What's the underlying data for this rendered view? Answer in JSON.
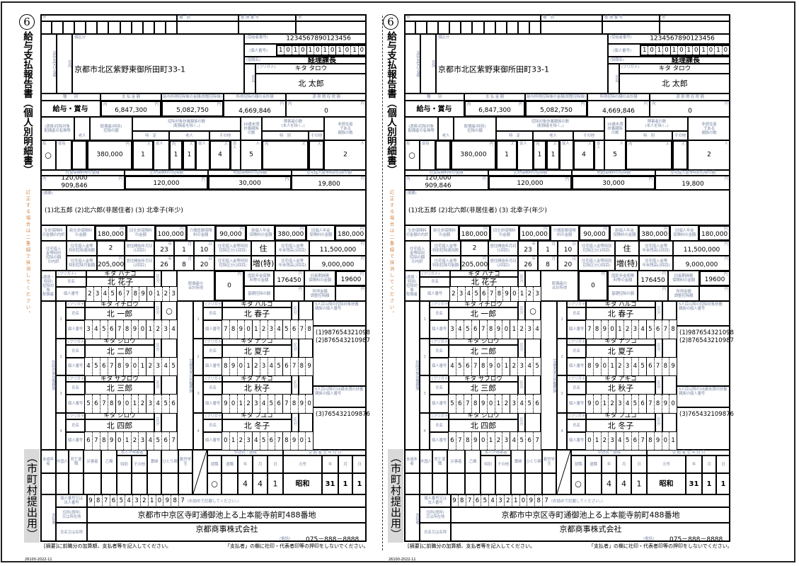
{
  "form": {
    "number": "6",
    "title": "給与支払報告書（個人別明細書）",
    "side_title": "（市町村提出用）",
    "side_note": "訂正する場合は二重線で抹消してください。",
    "recipient": {
      "address": "京都市北区紫野東御所田町33-1",
      "recipient_number": "1234567890123456",
      "my_number": "101010101010",
      "position": "経理課長",
      "furigana": "キタ タロウ",
      "name": "北 太郎"
    },
    "payment": {
      "type": "給与・賞与",
      "amount": "6,847,300",
      "after_deduction": "5,082,750",
      "total_deductions": "4,669,846",
      "withholding_tax": "0"
    },
    "counts": {
      "spouse_yes": "○",
      "spouse_deduction": "380,000",
      "specific": "1",
      "elderly_cohabiting": "1",
      "elderly": "1",
      "other": "4",
      "under16": "5",
      "nonresident": "2"
    },
    "deductions": {
      "social_insurance_inner": "120,000",
      "social_insurance": "909,846",
      "life_insurance": "120,000",
      "earthquake_insurance": "30,000",
      "housing_loan": "19,800"
    },
    "remarks": "(1)北五郎 (2)北六郎(非居住者) (3) 北幸子(年少)",
    "insurance": {
      "new_life": "180,000",
      "old_life": "100,000",
      "care_medical": "90,000",
      "new_pension": "380,000",
      "old_pension": "180,000"
    },
    "housing": {
      "count": "2",
      "start1": {
        "year": "23",
        "month": "1",
        "day": "10"
      },
      "category1": "住",
      "balance1": "11,500,000",
      "possible_amount": "205,000",
      "start2": {
        "year": "26",
        "month": "8",
        "day": "20"
      },
      "category2": "増(特)",
      "balance2": "9,000,000"
    },
    "spouse": {
      "furigana": "キタ ハナコ",
      "name": "北 花子",
      "my_number": "234567890123",
      "total_income": "0",
      "national_pension": "176450",
      "old_long_term": "19600"
    },
    "dependents": [
      {
        "furigana": "キタ イチロウ",
        "name": "北 一郎",
        "my_number": "345678901234",
        "kubun": "○"
      },
      {
        "furigana": "キタ ジロウ",
        "name": "北 二郎",
        "my_number": "456789012345",
        "kubun": ""
      },
      {
        "furigana": "キタ サブロウ",
        "name": "北 三郎",
        "my_number": "567890123456",
        "kubun": ""
      },
      {
        "furigana": "キタ シロウ",
        "name": "北 四郎",
        "my_number": "678901234567",
        "kubun": ""
      }
    ],
    "under16": [
      {
        "furigana": "キタ ハルコ",
        "name": "北 春子",
        "my_number": "789012345678"
      },
      {
        "furigana": "キタ ナツコ",
        "name": "北 夏子",
        "my_number": "890123456789"
      },
      {
        "furigana": "キタ アキコ",
        "name": "北 秋子",
        "my_number": "901234567890"
      },
      {
        "furigana": "キタ フユコ",
        "name": "北 冬子",
        "my_number": "012345678901"
      }
    ],
    "extra_dependents_numbers": "(1)987654321098 (2)876543210987",
    "extra_under16_numbers": "(3)765432109876",
    "status": {
      "employment": "○",
      "retirement": "",
      "year": "4",
      "month": "4",
      "day": "1",
      "birth_era": "昭和",
      "birth_year": "31",
      "birth_month": "1",
      "birth_day": "1"
    },
    "payer": {
      "number": "9876543210987",
      "address": "京都市中京区寺町通御池上る上本能寺前町488番地",
      "name": "京都商事株式会社",
      "phone": "075－888－8888"
    },
    "footnote_left": "[摘要]に前職分の加算額、支払者等を記入してください。",
    "footnote_right": "「支払者」の欄に社印・代表者印等の押印をしないでください。",
    "code": "26100-2022-11"
  },
  "labels": {
    "h_city": "市",
    "h_kind": "種　別",
    "h_seiri": "整 理 番 号",
    "h_city2": "市",
    "recipient": "支払を受ける者",
    "address": "住所",
    "kubun": "個区分",
    "recipient_number": "(受給者番号)",
    "my_number_paren": "(個人番号)",
    "position": "(役職名)",
    "shimei": "氏名",
    "furigana": "(フリガナ)",
    "kind": "種　　別",
    "amount": "支 払 金 額",
    "after_deduction": "給与所得控除後の金額(調整控除後)",
    "total_deductions": "所得控除の額の合計額",
    "withholding": "源 泉 徴 収 税 額",
    "uchi": "内",
    "yen": "円",
    "person": "人",
    "spouse_status": "(源泉)控除対象\n配偶者の有無等",
    "elderly": "老人",
    "spouse_deduction": "配偶者(特別)\n控除の額",
    "dependents_count": "控除対象扶養親族の数\n(配偶者を除く。)",
    "specific": "特　定",
    "other": "その他",
    "under16": "16歳未満\n扶養親族\nの数",
    "disabled_count": "障害者の数\n(本人を除く。)",
    "special": "特　別",
    "nonresident": "非居住者\nである\n親族の数",
    "yes": "有",
    "ju_yes": "従有",
    "ju_person": "従人",
    "social_insurance": "社会保険料等の金額",
    "life_insurance": "生命保険料の控除額",
    "earthquake": "地震保険料の控除額",
    "housing_loan": "住宅借入金等特別控除の額",
    "remarks": "(摘要)",
    "insurance_breakdown": "生命保険料\nの金額の内訳",
    "new_life": "新生命保険料\nの金額",
    "old_life": "旧生命保険料\nの金額",
    "care_medical": "介護医療保険\n料の金額",
    "new_pension": "新個人年金\n保険料の金額",
    "old_pension": "旧個人年金\n保険料の金額",
    "housing_breakdown": "住宅借入\n金等特別\n控除の額\nの内訳",
    "housing_count": "住宅借入金等\n特別控除適用数",
    "start1": "居住開始年月日\n(1回目)",
    "start2": "居住開始年月日\n(2回目)",
    "year": "年",
    "month": "月",
    "day": "日",
    "category1": "住宅借入金等特別\n控除区分(1回目)",
    "category2": "住宅借入金等特別\n控除区分(2回目)",
    "balance1": "住宅借入金等\n年末残高(1回目)",
    "balance2": "住宅借入金等\n年末残高(2回目)",
    "possible_amount": "住宅借入金等\n特別控除可能額",
    "spouse_block": "(源泉・特別)\n控除対象\n配偶者",
    "name": "氏名",
    "my_number": "個人番号",
    "kubun2": "区\n分",
    "spouse_income": "配偶者の\n合計所得",
    "national_pension": "国民年金保険\n料等の金額",
    "old_long_term": "旧長期損害\n保険料の金額",
    "basic_deduction": "基礎控除の額",
    "income_adjust": "所得金額\n調整控除額",
    "dependents_block": "控除対象扶養親族",
    "under16_block": "16歳未満の扶養親族",
    "extra_dep": "5人目以降の控除対象扶養\n親族の個人番号",
    "extra_u16": "5人目以降の16歳未満の扶養\n親族の個人番号",
    "minor": "未成年者",
    "foreigner": "外国人",
    "death_retire": "死亡退職",
    "disaster": "災害者",
    "otsu": "乙欄",
    "self_disabled": "本人が障害者",
    "special2": "特別",
    "other2": "その他",
    "widow": "寡婦",
    "single_parent": "ひとり親",
    "student": "勤労学生",
    "midway": "中途就・退職",
    "employment": "就職",
    "retirement": "退職",
    "birth": "受 給 者 生 年 月 日",
    "era": "元号",
    "payer": "支払者",
    "payer_number": "個人番号又は\n法人番号",
    "right_align_note": "(右詰めで記載してください。)",
    "payer_address": "住所(居所)\n又は所在地",
    "payer_name": "氏名又は名称",
    "phone": "(電話)"
  }
}
